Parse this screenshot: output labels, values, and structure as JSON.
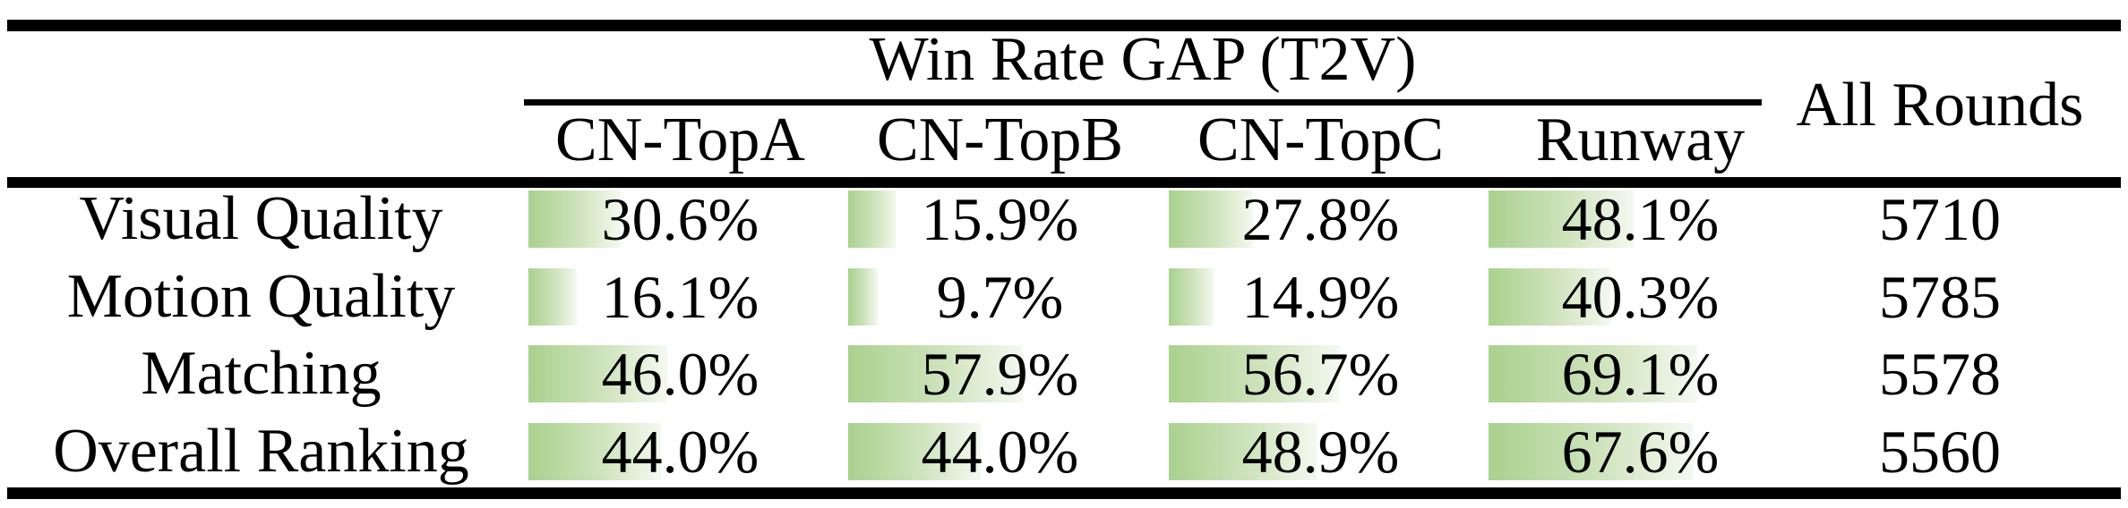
{
  "colors": {
    "bar_green": "#a9d18e",
    "bar_fade": "#f4f9f0",
    "rule_black": "#000000",
    "text": "#000000",
    "background": "#ffffff"
  },
  "table": {
    "title": "Win Rate GAP (T2V)",
    "all_rounds_header": "All Rounds",
    "columns": [
      "CN-TopA",
      "CN-TopB",
      "CN-TopC",
      "Runway"
    ],
    "rows": [
      {
        "label": "Visual Quality",
        "cells": [
          {
            "display": "30.6%",
            "value": 30.6
          },
          {
            "display": "15.9%",
            "value": 15.9
          },
          {
            "display": "27.8%",
            "value": 27.8
          },
          {
            "display": "48.1%",
            "value": 48.1
          }
        ],
        "all_rounds": "5710"
      },
      {
        "label": "Motion Quality",
        "cells": [
          {
            "display": "16.1%",
            "value": 16.1
          },
          {
            "display": "9.7%",
            "value": 9.7
          },
          {
            "display": "14.9%",
            "value": 14.9
          },
          {
            "display": "40.3%",
            "value": 40.3
          }
        ],
        "all_rounds": "5785"
      },
      {
        "label": "Matching",
        "cells": [
          {
            "display": "46.0%",
            "value": 46.0
          },
          {
            "display": "57.9%",
            "value": 57.9
          },
          {
            "display": "56.7%",
            "value": 56.7
          },
          {
            "display": "69.1%",
            "value": 69.1
          }
        ],
        "all_rounds": "5578"
      },
      {
        "label": "Overall Ranking",
        "cells": [
          {
            "display": "44.0%",
            "value": 44.0
          },
          {
            "display": "44.0%",
            "value": 44.0
          },
          {
            "display": "48.9%",
            "value": 48.9
          },
          {
            "display": "67.6%",
            "value": 67.6
          }
        ],
        "all_rounds": "5560"
      }
    ]
  },
  "chart_data": {
    "type": "table",
    "title": "Win Rate GAP (T2V)",
    "categories": [
      "Visual Quality",
      "Motion Quality",
      "Matching",
      "Overall Ranking"
    ],
    "series": [
      {
        "name": "CN-TopA",
        "unit": "%",
        "values": [
          30.6,
          16.1,
          46.0,
          44.0
        ]
      },
      {
        "name": "CN-TopB",
        "unit": "%",
        "values": [
          15.9,
          9.7,
          57.9,
          44.0
        ]
      },
      {
        "name": "CN-TopC",
        "unit": "%",
        "values": [
          27.8,
          14.9,
          56.7,
          48.9
        ]
      },
      {
        "name": "Runway",
        "unit": "%",
        "values": [
          48.1,
          40.3,
          69.1,
          67.6
        ]
      },
      {
        "name": "All Rounds",
        "unit": "rounds",
        "values": [
          5710,
          5785,
          5578,
          5560
        ]
      }
    ],
    "layout": {
      "bars": "green gradient data bars, left-aligned, width proportional to percent",
      "grid": false
    }
  }
}
